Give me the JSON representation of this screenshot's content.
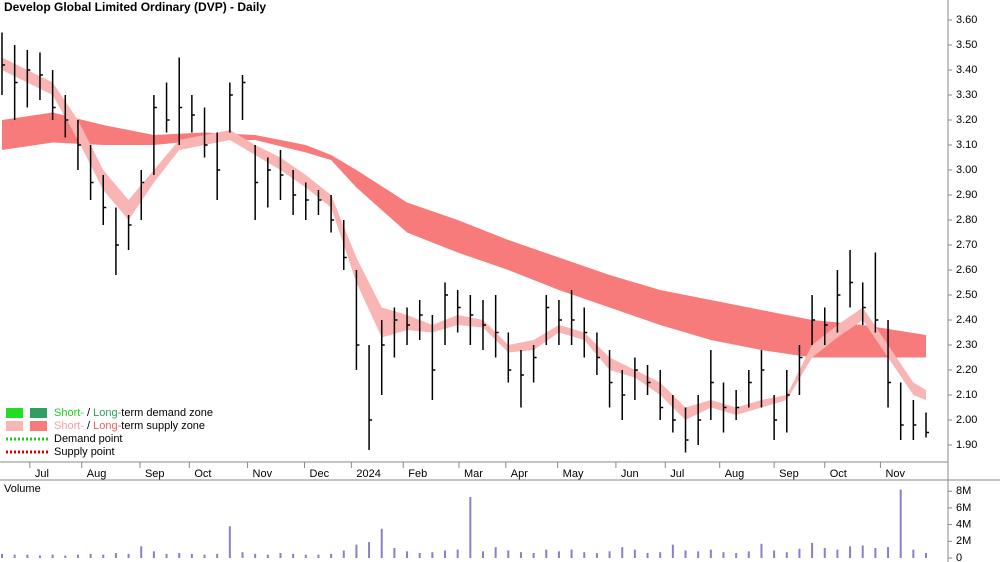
{
  "chart_data": {
    "type": "ohlc",
    "title": "Develop Global Limited Ordinary (DVP) - Daily",
    "xlim": [
      0,
      74.5
    ],
    "xticks": [
      {
        "value": 2.2,
        "label": "Jul"
      },
      {
        "value": 6.3,
        "label": "Aug"
      },
      {
        "value": 10.9,
        "label": "Sep"
      },
      {
        "value": 14.8,
        "label": "Oct"
      },
      {
        "value": 19.4,
        "label": "Nov"
      },
      {
        "value": 23.9,
        "label": "Dec"
      },
      {
        "value": 27.6,
        "label": "2024"
      },
      {
        "value": 31.7,
        "label": "Feb"
      },
      {
        "value": 36.1,
        "label": "Mar"
      },
      {
        "value": 39.8,
        "label": "Apr"
      },
      {
        "value": 43.9,
        "label": "May"
      },
      {
        "value": 48.5,
        "label": "Jun"
      },
      {
        "value": 52.4,
        "label": "Jul"
      },
      {
        "value": 56.7,
        "label": "Aug"
      },
      {
        "value": 61,
        "label": "Sep"
      },
      {
        "value": 65,
        "label": "Oct"
      },
      {
        "value": 69.4,
        "label": "Nov"
      }
    ],
    "ylim": [
      1.832,
      3.68
    ],
    "yticks": [
      {
        "value": 3.6,
        "label": "3.60"
      },
      {
        "value": 3.5,
        "label": "3.50"
      },
      {
        "value": 3.4,
        "label": "3.40"
      },
      {
        "value": 3.3,
        "label": "3.30"
      },
      {
        "value": 3.2,
        "label": "3.20"
      },
      {
        "value": 3.1,
        "label": "3.10"
      },
      {
        "value": 3.0,
        "label": "3.00"
      },
      {
        "value": 2.9,
        "label": "2.90"
      },
      {
        "value": 2.8,
        "label": "2.80"
      },
      {
        "value": 2.7,
        "label": "2.70"
      },
      {
        "value": 2.6,
        "label": "2.60"
      },
      {
        "value": 2.5,
        "label": "2.50"
      },
      {
        "value": 2.4,
        "label": "2.40"
      },
      {
        "value": 2.3,
        "label": "2.30"
      },
      {
        "value": 2.2,
        "label": "2.20"
      },
      {
        "value": 2.1,
        "label": "2.10"
      },
      {
        "value": 2.0,
        "label": "2.00"
      },
      {
        "value": 1.9,
        "label": "1.90"
      }
    ],
    "bar_color": "#000000",
    "x": [
      0,
      1,
      2,
      3,
      4,
      5,
      6,
      7,
      8,
      9,
      10,
      11,
      12,
      13,
      14,
      15,
      16,
      17,
      18,
      19,
      20,
      21,
      22,
      23,
      24,
      25,
      26,
      27,
      28,
      29,
      30,
      31,
      32,
      33,
      34,
      35,
      36,
      37,
      38,
      39,
      40,
      41,
      42,
      43,
      44,
      45,
      46,
      47,
      48,
      49,
      50,
      51,
      52,
      53,
      54,
      55,
      56,
      57,
      58,
      59,
      60,
      61,
      62,
      63,
      64,
      65,
      66,
      67,
      68,
      69,
      70,
      71,
      72,
      73
    ],
    "high": [
      3.55,
      3.5,
      3.48,
      3.47,
      3.4,
      3.3,
      3.2,
      3.1,
      2.98,
      2.85,
      2.82,
      3.0,
      3.3,
      3.35,
      3.45,
      3.3,
      3.25,
      3.15,
      3.35,
      3.38,
      3.1,
      3.05,
      3.08,
      3.0,
      2.95,
      2.92,
      2.9,
      2.8,
      2.6,
      2.3,
      2.4,
      2.45,
      2.45,
      2.48,
      2.42,
      2.55,
      2.52,
      2.5,
      2.48,
      2.5,
      2.35,
      2.28,
      2.3,
      2.5,
      2.48,
      2.52,
      2.45,
      2.35,
      2.28,
      2.2,
      2.25,
      2.22,
      2.2,
      2.1,
      2.05,
      2.1,
      2.28,
      2.15,
      2.12,
      2.2,
      2.28,
      2.1,
      2.2,
      2.3,
      2.5,
      2.45,
      2.6,
      2.68,
      2.55,
      2.67,
      2.4,
      2.15,
      2.08,
      2.03
    ],
    "low": [
      3.3,
      3.2,
      3.25,
      3.28,
      3.2,
      3.13,
      3.0,
      2.88,
      2.78,
      2.58,
      2.68,
      2.8,
      2.98,
      3.15,
      3.1,
      3.15,
      3.05,
      2.88,
      3.15,
      3.2,
      2.8,
      2.85,
      2.88,
      2.82,
      2.8,
      2.82,
      2.75,
      2.6,
      2.2,
      1.88,
      2.1,
      2.25,
      2.3,
      2.32,
      2.08,
      2.3,
      2.35,
      2.3,
      2.28,
      2.25,
      2.15,
      2.05,
      2.15,
      2.3,
      2.3,
      2.3,
      2.25,
      2.18,
      2.05,
      2.0,
      2.08,
      2.1,
      2.0,
      1.95,
      1.87,
      1.9,
      2.0,
      1.95,
      2.0,
      2.05,
      2.05,
      1.92,
      1.95,
      2.1,
      2.3,
      2.3,
      2.35,
      2.45,
      2.38,
      2.35,
      2.05,
      1.92,
      1.92,
      1.93
    ],
    "close": [
      3.42,
      3.35,
      3.4,
      3.38,
      3.25,
      3.2,
      3.1,
      2.95,
      2.85,
      2.7,
      2.78,
      2.95,
      3.25,
      3.2,
      3.25,
      3.22,
      3.1,
      3.0,
      3.3,
      3.35,
      2.95,
      3.0,
      2.98,
      2.9,
      2.88,
      2.88,
      2.8,
      2.65,
      2.3,
      2.0,
      2.3,
      2.4,
      2.38,
      2.42,
      2.2,
      2.5,
      2.45,
      2.42,
      2.38,
      2.35,
      2.2,
      2.18,
      2.25,
      2.45,
      2.4,
      2.4,
      2.35,
      2.25,
      2.15,
      2.1,
      2.2,
      2.15,
      2.05,
      2.0,
      1.92,
      2.0,
      2.15,
      2.05,
      2.05,
      2.15,
      2.2,
      2.0,
      2.1,
      2.25,
      2.4,
      2.38,
      2.5,
      2.55,
      2.45,
      2.4,
      2.15,
      1.98,
      1.98,
      1.95
    ],
    "bands": [
      {
        "name": "long-term",
        "color": "#f77b7b",
        "x": [
          0,
          4,
          8,
          12,
          16,
          20,
          24,
          26,
          28,
          32,
          36,
          40,
          44,
          48,
          52,
          56,
          60,
          64,
          68,
          73
        ],
        "upper": [
          3.2,
          3.23,
          3.18,
          3.14,
          3.15,
          3.14,
          3.1,
          3.06,
          3.0,
          2.87,
          2.8,
          2.72,
          2.65,
          2.58,
          2.52,
          2.48,
          2.44,
          2.4,
          2.38,
          2.34
        ],
        "lower": [
          3.08,
          3.11,
          3.1,
          3.1,
          3.12,
          3.12,
          3.07,
          3.04,
          2.93,
          2.75,
          2.67,
          2.6,
          2.52,
          2.45,
          2.38,
          2.32,
          2.28,
          2.25,
          2.25,
          2.25
        ]
      },
      {
        "name": "short-term",
        "color": "#f9b4b4",
        "x": [
          0,
          4,
          6,
          8,
          10,
          12,
          14,
          16,
          18,
          20,
          22,
          24,
          26,
          28,
          30,
          32,
          34,
          36,
          38,
          40,
          42,
          44,
          46,
          48,
          50,
          52,
          54,
          56,
          58,
          60,
          62,
          64,
          66,
          68,
          70,
          72,
          73
        ],
        "upper": [
          3.45,
          3.35,
          3.2,
          3.0,
          2.88,
          3.0,
          3.12,
          3.14,
          3.16,
          3.1,
          3.05,
          2.98,
          2.9,
          2.65,
          2.45,
          2.42,
          2.38,
          2.42,
          2.4,
          2.3,
          2.32,
          2.38,
          2.35,
          2.25,
          2.2,
          2.15,
          2.05,
          2.08,
          2.05,
          2.08,
          2.1,
          2.3,
          2.38,
          2.45,
          2.3,
          2.15,
          2.12
        ],
        "lower": [
          3.4,
          3.3,
          3.12,
          2.92,
          2.8,
          2.95,
          3.08,
          3.1,
          3.12,
          3.06,
          3.0,
          2.93,
          2.85,
          2.55,
          2.33,
          2.36,
          2.35,
          2.38,
          2.37,
          2.27,
          2.28,
          2.35,
          2.32,
          2.2,
          2.17,
          2.1,
          2.0,
          2.05,
          2.02,
          2.05,
          2.08,
          2.25,
          2.33,
          2.4,
          2.25,
          2.1,
          2.08
        ]
      }
    ],
    "legend": [
      {
        "swatches": [
          "#22dd22",
          "#2f9e5e"
        ],
        "parts": [
          "Short-",
          " / ",
          "Long-",
          "term demand zone"
        ],
        "part_colors": [
          "#22cc22",
          "#000000",
          "#2f9e5e",
          "#000000"
        ]
      },
      {
        "swatches": [
          "#f9b4b4",
          "#f77b7b"
        ],
        "parts": [
          "Short-",
          " / ",
          "Long-",
          "term supply zone"
        ],
        "part_colors": [
          "#f9a0a0",
          "#000000",
          "#f06060",
          "#000000"
        ]
      },
      {
        "dots": "#22cc22",
        "parts": [
          "Demand point"
        ],
        "part_colors": [
          "#000000"
        ]
      },
      {
        "dots": "#dd0000",
        "parts": [
          "Supply point"
        ],
        "part_colors": [
          "#000000"
        ]
      }
    ],
    "volume": {
      "label": "Volume",
      "label_color": "#5a2d91",
      "color": "#8a7fc9",
      "ylim": [
        0,
        8.5
      ],
      "yticks": [
        {
          "value": 8,
          "label": "8M"
        },
        {
          "value": 6,
          "label": "6M"
        },
        {
          "value": 4,
          "label": "4M"
        },
        {
          "value": 2,
          "label": "2M"
        },
        {
          "value": 0,
          "label": "0"
        }
      ],
      "values": [
        0.5,
        0.4,
        0.4,
        0.3,
        0.4,
        0.3,
        0.4,
        0.5,
        0.4,
        0.6,
        0.5,
        1.4,
        0.8,
        0.5,
        0.6,
        0.5,
        0.4,
        0.5,
        3.8,
        0.7,
        0.5,
        0.4,
        0.6,
        0.5,
        0.4,
        0.4,
        0.5,
        0.9,
        1.6,
        1.9,
        3.5,
        1.2,
        0.8,
        0.6,
        0.7,
        0.9,
        1.0,
        7.3,
        0.8,
        1.3,
        0.9,
        0.7,
        0.6,
        1.0,
        0.8,
        1.0,
        0.7,
        0.6,
        0.8,
        1.3,
        1.0,
        0.6,
        0.7,
        1.6,
        0.9,
        0.8,
        1.0,
        0.7,
        0.6,
        0.8,
        1.7,
        0.9,
        0.7,
        1.1,
        1.8,
        1.2,
        1.0,
        1.4,
        1.5,
        1.2,
        1.3,
        8.2,
        1.0,
        0.6
      ]
    }
  }
}
